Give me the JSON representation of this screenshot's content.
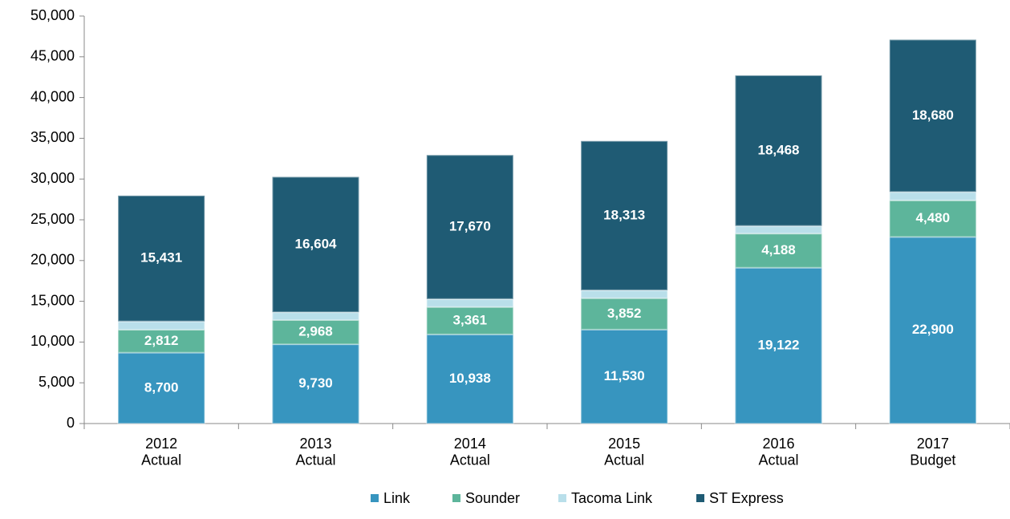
{
  "chart_data": {
    "type": "stacked_bar",
    "categories": [
      "2012\nActual",
      "2013\nActual",
      "2014\nActual",
      "2015\nActual",
      "2016\nActual",
      "2017\nBudget"
    ],
    "series": [
      {
        "name": "Link",
        "color": "#3795bf",
        "values": [
          8700,
          9730,
          10938,
          11530,
          19122,
          22900
        ],
        "value_labels": [
          "8,700",
          "9,730",
          "10,938",
          "11,530",
          "19,122",
          "22,900"
        ]
      },
      {
        "name": "Sounder",
        "color": "#5db59b",
        "values": [
          2812,
          2968,
          3361,
          3852,
          4188,
          4480
        ],
        "value_labels": [
          "2,812",
          "2,968",
          "3,361",
          "3,852",
          "4,188",
          "4,480"
        ]
      },
      {
        "name": "Tacoma Link",
        "color": "#b9dfea",
        "values": [
          1024,
          962,
          974,
          973,
          938,
          1040
        ],
        "value_labels": [
          "1,024",
          "962",
          "974",
          "973",
          "938",
          "1,040"
        ]
      },
      {
        "name": "ST Express",
        "color": "#1f5b74",
        "values": [
          15431,
          16604,
          17670,
          18313,
          18468,
          18680
        ],
        "value_labels": [
          "15,431",
          "16,604",
          "17,670",
          "18,313",
          "18,468",
          "18,680"
        ]
      }
    ],
    "ylim": [
      0,
      50000
    ],
    "yticks": [
      0,
      {
        "value": 5000,
        "label": "5,000"
      },
      {
        "value": 10000,
        "label": "10,000"
      },
      {
        "value": 15000,
        "label": "15,000"
      },
      {
        "value": 20000,
        "label": "20,000"
      },
      {
        "value": 25000,
        "label": "25,000"
      },
      {
        "value": 30000,
        "label": "30,000"
      },
      {
        "value": 35000,
        "label": "35,000"
      },
      {
        "value": 40000,
        "label": "40,000"
      },
      {
        "value": 45000,
        "label": "45,000"
      },
      {
        "value": 50000,
        "label": "50,000"
      }
    ],
    "grid": false,
    "legend": "bottom"
  }
}
